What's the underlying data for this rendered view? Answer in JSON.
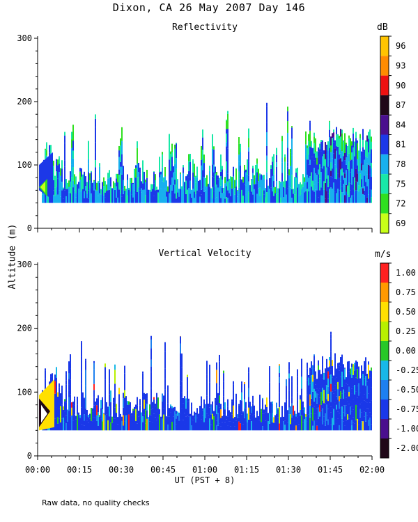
{
  "title": "Dixon, CA 26 May 2007  Day 146",
  "footnote": "Raw data, no quality checks",
  "chart_data": [
    {
      "type": "heatmap",
      "title": "Reflectivity",
      "ylabel": "Altitude (m)",
      "xlabel": "UT  (PST + 8)",
      "x_tick_labels": [
        "00:00",
        "00:15",
        "00:30",
        "00:45",
        "01:00",
        "01:15",
        "01:30",
        "01:45",
        "02:00"
      ],
      "y_tick_labels": [
        "0",
        "100",
        "200",
        "300"
      ],
      "ylim": [
        0,
        300
      ],
      "xlim_hours": [
        0,
        2
      ],
      "data_floor_m": 40,
      "colorbar": {
        "unit": "dB",
        "labels": [
          "96",
          "93",
          "90",
          "87",
          "84",
          "81",
          "78",
          "75",
          "72",
          "69"
        ],
        "colors": [
          "#ffc400",
          "#ff8c00",
          "#ee1111",
          "#200818",
          "#4a0f8e",
          "#1c38e8",
          "#18b0ee",
          "#18e8a8",
          "#30e020",
          "#c8ff18"
        ]
      },
      "description_levels": {
        "typical_echo_top_m": [
          80,
          160
        ],
        "max_echo_top_m": 200
      }
    },
    {
      "type": "heatmap",
      "title": "Vertical Velocity",
      "ylabel": "Altitude (m)",
      "xlabel": "UT  (PST + 8)",
      "x_tick_labels": [
        "00:00",
        "00:15",
        "00:30",
        "00:45",
        "01:00",
        "01:15",
        "01:30",
        "01:45",
        "02:00"
      ],
      "y_tick_labels": [
        "0",
        "100",
        "200",
        "300"
      ],
      "ylim": [
        0,
        300
      ],
      "xlim_hours": [
        0,
        2
      ],
      "data_floor_m": 40,
      "colorbar": {
        "unit": "m/s",
        "labels": [
          "1.00",
          "0.75",
          "0.50",
          "0.25",
          "0.00",
          "-0.25",
          "-0.50",
          "-0.75",
          "-1.00",
          "-2.00"
        ],
        "colors": [
          "#ff2020",
          "#ff9900",
          "#ffe000",
          "#b8f000",
          "#28c828",
          "#18b8e8",
          "#1e80f0",
          "#1a38e8",
          "#4a0f8e",
          "#200818"
        ]
      },
      "description_levels": {
        "typical_echo_top_m": [
          80,
          160
        ],
        "max_echo_top_m": 200
      }
    }
  ]
}
